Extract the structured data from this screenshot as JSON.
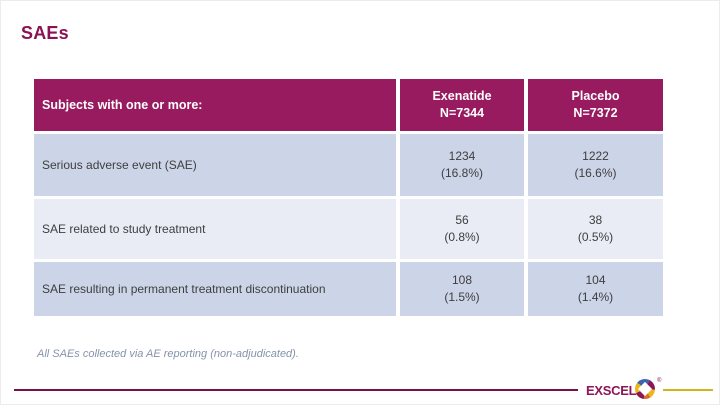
{
  "slide": {
    "title": "SAEs"
  },
  "table": {
    "row_header_label": "Subjects with one or more:",
    "columns": [
      {
        "name": "Exenatide",
        "n": "N=7344"
      },
      {
        "name": "Placebo",
        "n": "N=7372"
      }
    ],
    "rows": [
      {
        "label": "Serious adverse event (SAE)",
        "exenatide_n": "1234",
        "exenatide_pct": "(16.8%)",
        "placebo_n": "1222",
        "placebo_pct": "(16.6%)"
      },
      {
        "label": "SAE related to study treatment",
        "exenatide_n": "56",
        "exenatide_pct": "(0.8%)",
        "placebo_n": "38",
        "placebo_pct": "(0.5%)"
      },
      {
        "label": "SAE resulting in permanent treatment discontinuation",
        "exenatide_n": "108",
        "exenatide_pct": "(1.5%)",
        "placebo_n": "104",
        "placebo_pct": "(1.4%)"
      }
    ]
  },
  "footnote": {
    "text": "All SAEs collected via AE reporting (non-adjudicated)."
  },
  "footer": {
    "logo_text": "EXSCEL",
    "reg": "®"
  },
  "colors": {
    "brand_maroon": "#981B60",
    "title_maroon": "#8A1353",
    "footer_line_maroon": "#7A104A",
    "row_blue": "#CCD4E8",
    "row_blue_light": "#E9ECF5",
    "footnote_slate": "#8593A9",
    "footer_line_yellow": "#D2B517",
    "header_text": "#FFFFFF",
    "cell_text": "#3E3E3E"
  }
}
